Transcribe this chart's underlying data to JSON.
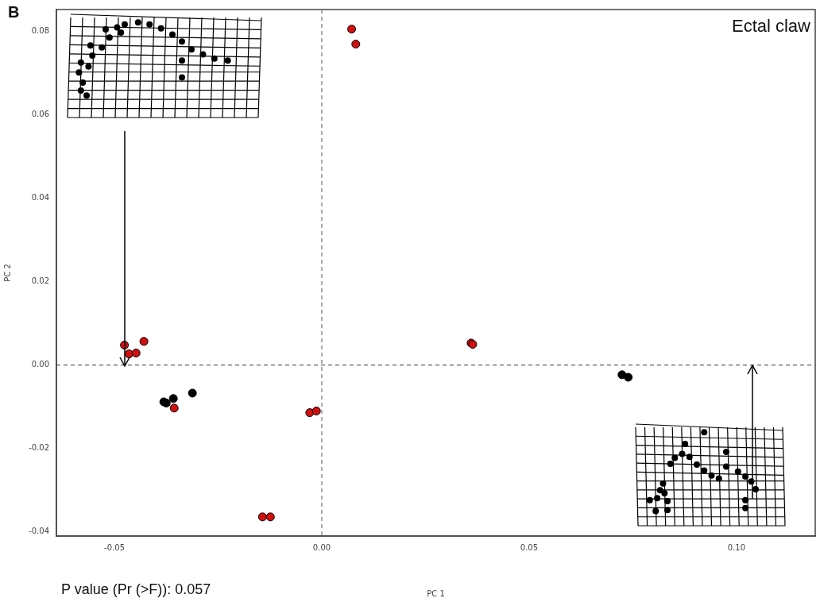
{
  "chart_data": {
    "type": "scatter",
    "xlabel": "PC 1",
    "ylabel": "PC 2",
    "annotations": [
      "B",
      "Ectal claw",
      "P value (Pr (>F)): 0.057"
    ],
    "xlim": [
      -0.064,
      0.119
    ],
    "ylim": [
      -0.041,
      0.0853
    ],
    "xticks": [
      -0.05,
      {
        "value": 0,
        "label": "0.00"
      },
      0.05,
      {
        "value": 0.1,
        "label": "0.10"
      }
    ],
    "yticks": [
      -0.04,
      -0.02,
      {
        "value": 0,
        "label": "0.00"
      },
      0.02,
      0.04,
      0.06,
      0.08
    ],
    "grid": false,
    "legend": false,
    "marker": "circle",
    "ref_lines": [
      {
        "axis": "x",
        "value": 0,
        "line_style": "dashed",
        "color": "#777777"
      },
      {
        "axis": "y",
        "value": 0,
        "line_style": "dashed",
        "color": "#3a3a3a"
      }
    ],
    "series": [
      {
        "color": "#d01010",
        "x": [
          0.0072,
          0.0082,
          -0.0476,
          -0.0465,
          -0.0448,
          -0.0429,
          -0.0356,
          -0.0029,
          -0.0013,
          -0.0143,
          -0.0124,
          0.036,
          0.0364
        ],
        "values": [
          0.0806,
          0.077,
          0.0048,
          0.0027,
          0.0029,
          0.0057,
          -0.0103,
          -0.0114,
          -0.011,
          -0.0364,
          -0.0364,
          0.0053,
          0.005
        ]
      },
      {
        "color": "#000000",
        "x": [
          -0.0381,
          -0.0375,
          -0.0358,
          -0.0312,
          0.0724,
          0.0739
        ],
        "values": [
          -0.0088,
          -0.0091,
          -0.008,
          -0.0067,
          -0.0023,
          -0.0029
        ]
      }
    ]
  }
}
